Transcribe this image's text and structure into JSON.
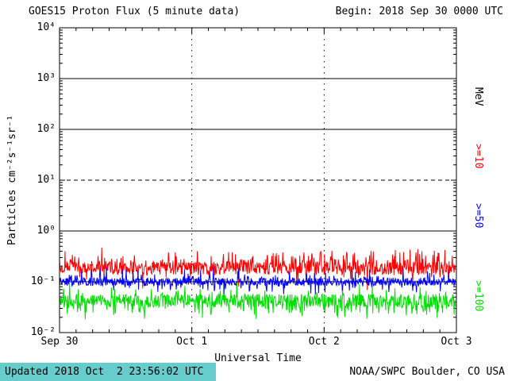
{
  "header": {
    "title": "GOES15 Proton Flux (5 minute data)",
    "begin_label": "Begin: 2018 Sep 30 0000 UTC"
  },
  "footer": {
    "updated": "Updated 2018 Oct  2 23:56:02 UTC",
    "source": "NOAA/SWPC Boulder, CO USA",
    "updated_bg": "#66CCCC"
  },
  "chart_data": {
    "type": "line",
    "title": "GOES15 Proton Flux (5 minute data)",
    "xlabel": "Universal Time",
    "ylabel": "Particles cm⁻²s⁻¹sr⁻¹",
    "unit_label": "MeV",
    "x_ticks": [
      "Sep 30",
      "Oct 1",
      "Oct 2",
      "Oct 3"
    ],
    "x_tick_days": [
      0,
      1,
      2,
      3
    ],
    "y_ticks": [
      "10⁴",
      "10³",
      "10²",
      "10¹",
      "10⁰",
      "10⁻¹",
      "10⁻²"
    ],
    "y_log_range": [
      -2,
      4
    ],
    "ylim_flux": [
      0.01,
      10000
    ],
    "x_range_days": [
      0,
      3
    ],
    "cadence_minutes": 5,
    "grid": {
      "solid_decades": [
        3,
        2,
        0,
        -1
      ],
      "dashed_decades": [
        1
      ],
      "vertical_dashed_days": [
        1,
        2
      ]
    },
    "legend_position": "right",
    "series": [
      {
        "name": ">=10",
        "mev_threshold": 10,
        "color": "#FF0000",
        "approx_mean_flux": 0.18,
        "approx_flux_range": [
          0.1,
          0.45
        ],
        "base_log": -0.74,
        "jitter_log": 0.13,
        "spike_up_prob": 0.25,
        "spike_down_prob": 0.05,
        "spike_amp_log": 0.3,
        "seed": 7,
        "n_points": 863
      },
      {
        "name": ">=50",
        "mev_threshold": 50,
        "color": "#0000FF",
        "approx_mean_flux": 0.1,
        "approx_flux_range": [
          0.05,
          0.2
        ],
        "base_log": -1.0,
        "jitter_log": 0.08,
        "spike_up_prob": 0.12,
        "spike_down_prob": 0.12,
        "spike_amp_log": 0.22,
        "seed": 19,
        "n_points": 863
      },
      {
        "name": ">=100",
        "mev_threshold": 100,
        "color": "#00DD00",
        "approx_mean_flux": 0.043,
        "approx_flux_range": [
          0.02,
          0.1
        ],
        "base_log": -1.37,
        "jitter_log": 0.13,
        "spike_up_prob": 0.1,
        "spike_down_prob": 0.22,
        "spike_amp_log": 0.25,
        "seed": 42,
        "n_points": 863
      }
    ]
  }
}
